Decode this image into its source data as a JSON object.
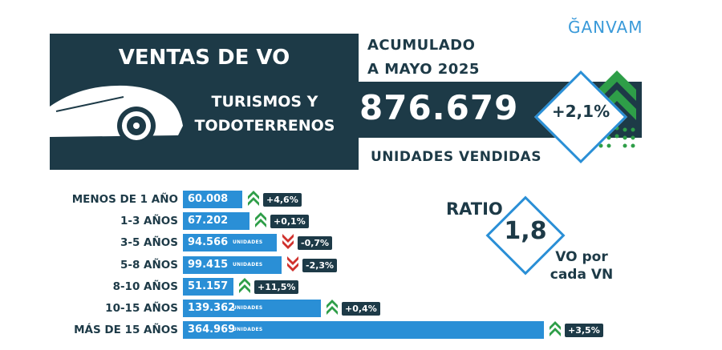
{
  "header": {
    "title": "VENTAS DE VO",
    "period_line1": "ACUMULADO",
    "period_line2": "A MAYO 2025",
    "segment_line1": "TURISMOS Y",
    "segment_line2": "TODOTERRENOS",
    "total_units": "876.679",
    "units_label": "UNIDADES VENDIDAS",
    "growth": "+2,1%",
    "brand": "ĞANVAM"
  },
  "age_groups": [
    {
      "label": "MENOS DE 1 AÑO",
      "value": "60.008",
      "unit": "",
      "change": "+4,6%",
      "direction": "up",
      "units_sold": 60008
    },
    {
      "label": "1-3 AÑOS",
      "value": "67.202",
      "unit": "",
      "change": "+0,1%",
      "direction": "up",
      "units_sold": 67202
    },
    {
      "label": "3-5 AÑOS",
      "value": "94.566",
      "unit": "UNIDADES",
      "change": "-0,7%",
      "direction": "down",
      "units_sold": 94566
    },
    {
      "label": "5-8 AÑOS",
      "value": "99.415",
      "unit": "UNIDADES",
      "change": "-2,3%",
      "direction": "down",
      "units_sold": 99415
    },
    {
      "label": "8-10 AÑOS",
      "value": "51.157",
      "unit": "",
      "change": "+11,5%",
      "direction": "up",
      "units_sold": 51157
    },
    {
      "label": "10-15 AÑOS",
      "value": "139.362",
      "unit": "UNIDADES",
      "change": "+0,4%",
      "direction": "up",
      "units_sold": 139362
    },
    {
      "label": "MÁS DE 15 AÑOS",
      "value": "364.969",
      "unit": "UNIDADES",
      "change": "+3,5%",
      "direction": "up",
      "units_sold": 364969
    }
  ],
  "ratio": {
    "title": "RATIO",
    "value": "1,8",
    "caption_line1": "VO por",
    "caption_line2": "cada VN"
  },
  "colors": {
    "dark": "#1d3a47",
    "bar": "#2a8fd6",
    "up": "#2e9e48",
    "down": "#d0312d"
  }
}
